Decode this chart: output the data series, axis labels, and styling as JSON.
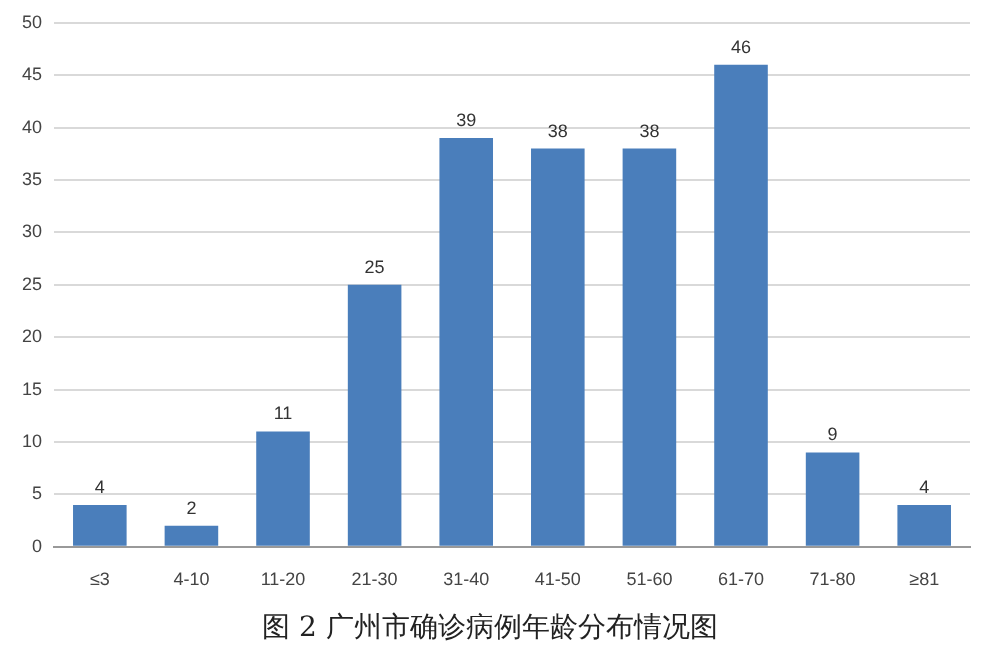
{
  "chart_data": {
    "type": "bar",
    "title": "图 2 广州市确诊病例年龄分布情况图",
    "categories": [
      "≤3",
      "4-10",
      "11-20",
      "21-30",
      "31-40",
      "41-50",
      "51-60",
      "61-70",
      "71-80",
      "≥81"
    ],
    "values": [
      4,
      2,
      11,
      25,
      39,
      38,
      38,
      46,
      9,
      4
    ],
    "color": "#4a7ebb",
    "ylim": [
      0,
      50
    ],
    "yticks": [
      0,
      5,
      10,
      15,
      20,
      25,
      30,
      35,
      40,
      45,
      50
    ],
    "grid": "y",
    "data_labels": true
  }
}
